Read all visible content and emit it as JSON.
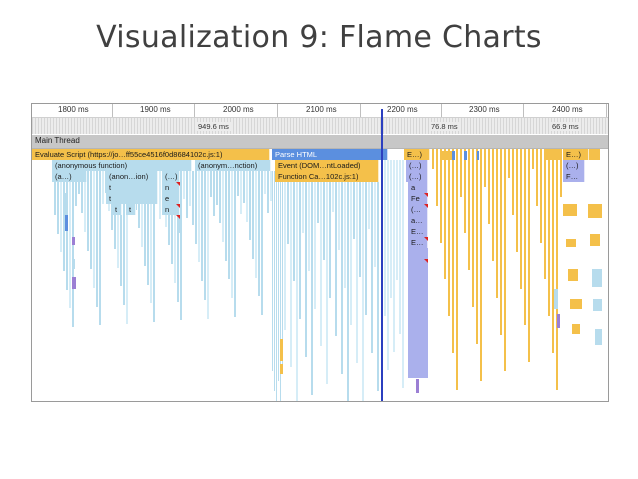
{
  "slide": {
    "title": "Visualization 9: Flame Charts"
  },
  "ruler": {
    "ticks": [
      {
        "label": "1800 ms",
        "x": 44
      },
      {
        "label": "1900 ms",
        "x": 126
      },
      {
        "label": "2000 ms",
        "x": 209
      },
      {
        "label": "2100 ms",
        "x": 292
      },
      {
        "label": "2200 ms",
        "x": 373
      },
      {
        "label": "2300 ms",
        "x": 455
      },
      {
        "label": "2400 ms",
        "x": 538
      }
    ]
  },
  "frames": {
    "labels": [
      {
        "label": "949.6 ms",
        "x": 164
      },
      {
        "label": "76.8 ms",
        "x": 397
      },
      {
        "label": "66.9 ms",
        "x": 518
      }
    ]
  },
  "thread": {
    "name": "Main Thread"
  },
  "colors": {
    "script": "#f4c04a",
    "script_dark": "#e0a72c",
    "parse": "#5b8fdf",
    "light_blue": "#b7dced",
    "pale_blue": "#d6edf7",
    "purple": "#aab0ec",
    "violet": "#9b7fd4",
    "marker": "#2b3fbf"
  },
  "flame": {
    "bars": [
      {
        "label": "Evaluate Script (https://jo…ff55ce4516f0d8684102c.js:1)",
        "x": 0,
        "w": 238,
        "row": 0,
        "c": "script"
      },
      {
        "label": "Parse HTML",
        "x": 240,
        "w": 116,
        "row": 0,
        "c": "parse"
      },
      {
        "label": "E…)",
        "x": 372,
        "w": 26,
        "row": 0,
        "c": "script"
      },
      {
        "label": "E…)",
        "x": 531,
        "w": 26,
        "row": 0,
        "c": "script"
      },
      {
        "label": "(anonymous function)",
        "x": 20,
        "w": 140,
        "row": 1,
        "c": "light_blue"
      },
      {
        "label": "(anonym…nction)",
        "x": 163,
        "w": 76,
        "row": 1,
        "c": "light_blue"
      },
      {
        "label": "Event (DOM…ntLoaded)",
        "x": 243,
        "w": 104,
        "row": 1,
        "c": "script"
      },
      {
        "label": "(…)",
        "x": 374,
        "w": 22,
        "row": 1,
        "c": "purple"
      },
      {
        "label": "(…)",
        "x": 531,
        "w": 22,
        "row": 1,
        "c": "purple"
      },
      {
        "label": "(a…)",
        "x": 20,
        "w": 35,
        "row": 2,
        "c": "light_blue"
      },
      {
        "label": "(anon…ion)",
        "x": 74,
        "w": 52,
        "row": 2,
        "c": "light_blue"
      },
      {
        "label": "(…)",
        "x": 130,
        "w": 18,
        "row": 2,
        "c": "light_blue"
      },
      {
        "label": "Function Ca…102c.js:1)",
        "x": 243,
        "w": 104,
        "row": 2,
        "c": "script"
      },
      {
        "label": "(…)",
        "x": 374,
        "w": 22,
        "row": 2,
        "c": "purple"
      },
      {
        "label": "F…",
        "x": 531,
        "w": 22,
        "row": 2,
        "c": "purple"
      },
      {
        "label": "t",
        "x": 74,
        "w": 52,
        "row": 3,
        "c": "light_blue"
      },
      {
        "label": "n",
        "x": 130,
        "w": 18,
        "row": 3,
        "c": "light_blue"
      },
      {
        "label": "a",
        "x": 376,
        "w": 20,
        "row": 3,
        "c": "purple"
      },
      {
        "label": "t",
        "x": 74,
        "w": 52,
        "row": 4,
        "c": "light_blue"
      },
      {
        "label": "e",
        "x": 130,
        "w": 18,
        "row": 4,
        "c": "light_blue"
      },
      {
        "label": "Fe",
        "x": 376,
        "w": 20,
        "row": 4,
        "c": "purple"
      },
      {
        "label": "t",
        "x": 80,
        "w": 10,
        "row": 5,
        "c": "light_blue"
      },
      {
        "label": "t",
        "x": 94,
        "w": 10,
        "row": 5,
        "c": "light_blue"
      },
      {
        "label": "n",
        "x": 130,
        "w": 18,
        "row": 5,
        "c": "light_blue"
      },
      {
        "label": "(…",
        "x": 376,
        "w": 20,
        "row": 5,
        "c": "purple"
      },
      {
        "label": "a…",
        "x": 376,
        "w": 20,
        "row": 6,
        "c": "purple"
      },
      {
        "label": "E…",
        "x": 376,
        "w": 20,
        "row": 7,
        "c": "purple"
      },
      {
        "label": "E…",
        "x": 376,
        "w": 20,
        "row": 8,
        "c": "purple"
      }
    ]
  }
}
